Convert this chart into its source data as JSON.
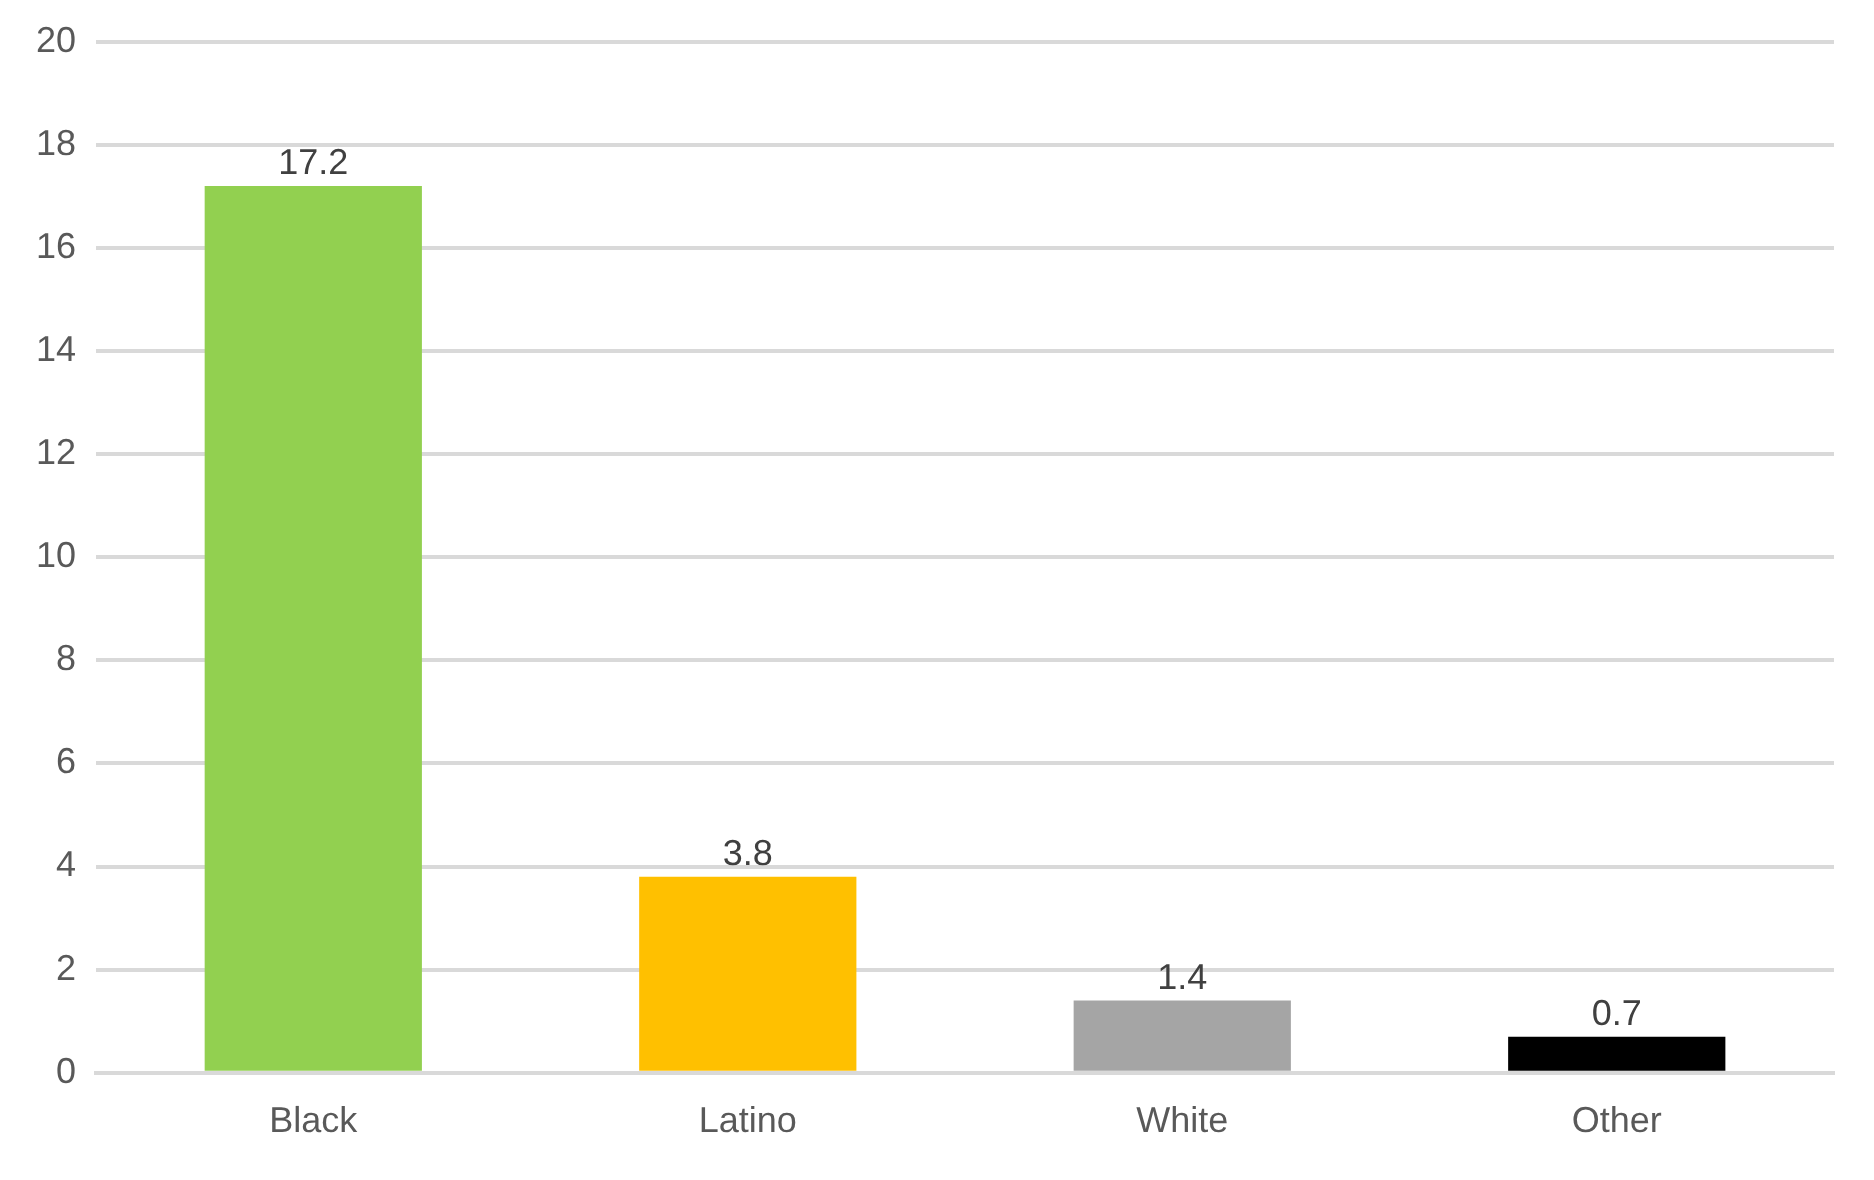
{
  "chart_data": {
    "type": "bar",
    "categories": [
      "Black",
      "Latino",
      "White",
      "Other"
    ],
    "values": [
      17.2,
      3.8,
      1.4,
      0.7
    ],
    "colors": [
      "#92d050",
      "#ffc000",
      "#a5a5a5",
      "#000000"
    ],
    "ylim": [
      0,
      20
    ],
    "yticks": [
      0,
      2,
      4,
      6,
      8,
      10,
      12,
      14,
      16,
      18,
      20
    ],
    "grid": "y",
    "data_labels": true,
    "legend": false
  }
}
